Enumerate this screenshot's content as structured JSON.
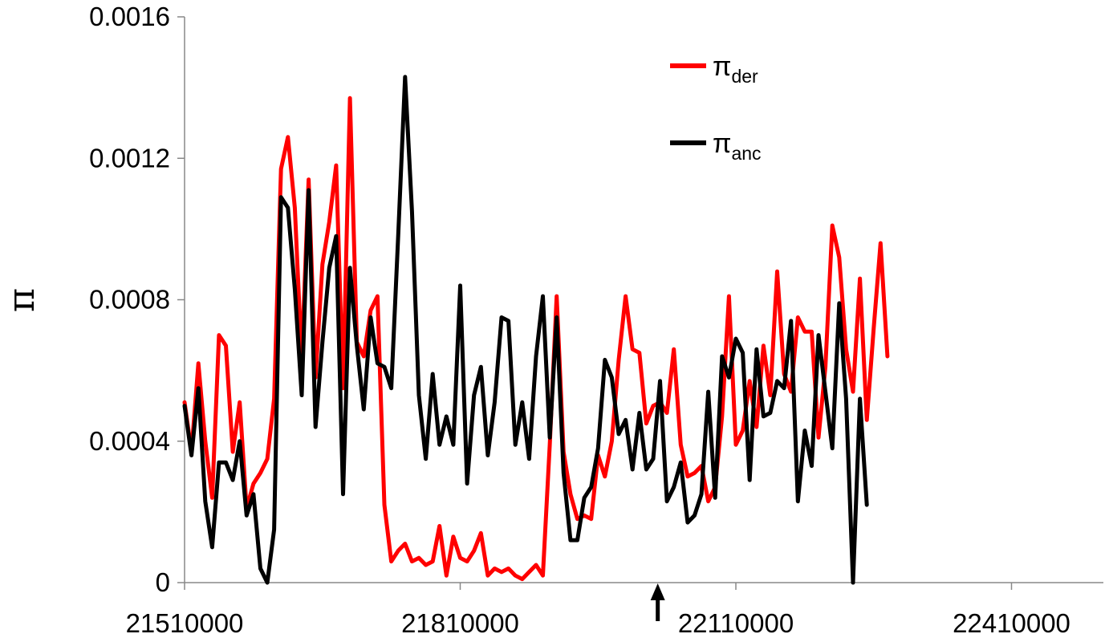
{
  "chart_data": {
    "type": "line",
    "title": "",
    "xlabel": "",
    "ylabel": "π",
    "xlim": [
      21510000,
      22510000
    ],
    "ylim": [
      0,
      0.0016
    ],
    "x_ticks": [
      21510000,
      21810000,
      22110000,
      22410000
    ],
    "x_tick_labels": [
      "21510000",
      "21810000",
      "22110000",
      "22410000"
    ],
    "y_ticks": [
      0,
      0.0004,
      0.0008,
      0.0012,
      0.0016
    ],
    "y_tick_labels": [
      "0",
      "0.0004",
      "0.0008",
      "0.0012",
      "0.0016"
    ],
    "grid": false,
    "legend_position": "top-right",
    "x_start": 21510000,
    "x_step": 7500,
    "annotation": {
      "type": "arrow",
      "x": 22025000
    },
    "series": [
      {
        "name": "π_der",
        "label_main": "π",
        "label_sub": "der",
        "color": "#ff0000",
        "values": [
          0.00051,
          0.00037,
          0.00062,
          0.0004,
          0.00024,
          0.0007,
          0.00067,
          0.00037,
          0.00051,
          0.00021,
          0.00028,
          0.00031,
          0.00035,
          0.00052,
          0.00117,
          0.00126,
          0.00106,
          0.00063,
          0.00114,
          0.00058,
          0.0009,
          0.00102,
          0.00118,
          0.00055,
          0.00137,
          0.00068,
          0.00064,
          0.00077,
          0.00081,
          0.00022,
          6e-05,
          9e-05,
          0.00011,
          6e-05,
          7e-05,
          5e-05,
          6e-05,
          0.00016,
          2e-05,
          0.00013,
          7e-05,
          6e-05,
          9e-05,
          0.00014,
          2e-05,
          4e-05,
          3e-05,
          4e-05,
          2e-05,
          1e-05,
          3e-05,
          5e-05,
          2e-05,
          0.00039,
          0.00081,
          0.00037,
          0.00025,
          0.00018,
          0.00019,
          0.00018,
          0.00036,
          0.0003,
          0.0004,
          0.00063,
          0.00081,
          0.00066,
          0.00065,
          0.00045,
          0.0005,
          0.00051,
          0.00048,
          0.00066,
          0.00039,
          0.0003,
          0.00031,
          0.00033,
          0.00023,
          0.00027,
          0.00047,
          0.00081,
          0.00039,
          0.00043,
          0.00057,
          0.00044,
          0.00067,
          0.00053,
          0.00088,
          0.00059,
          0.00054,
          0.00075,
          0.00071,
          0.00071,
          0.00041,
          0.00061,
          0.00101,
          0.00092,
          0.00066,
          0.00054,
          0.00086,
          0.00046,
          0.00072,
          0.00096,
          0.00064
        ]
      },
      {
        "name": "π_anc",
        "label_main": "π",
        "label_sub": "anc",
        "color": "#000000",
        "values": [
          0.0005,
          0.00036,
          0.00055,
          0.00023,
          0.0001,
          0.00034,
          0.00034,
          0.00029,
          0.0004,
          0.00019,
          0.00025,
          4e-05,
          0.0,
          0.00015,
          0.00109,
          0.00106,
          0.00083,
          0.00053,
          0.00111,
          0.00044,
          0.00068,
          0.00089,
          0.00098,
          0.00025,
          0.00089,
          0.00067,
          0.00049,
          0.00075,
          0.00062,
          0.00061,
          0.00055,
          0.00098,
          0.00143,
          0.00105,
          0.00053,
          0.00035,
          0.00059,
          0.00039,
          0.00047,
          0.00039,
          0.00084,
          0.00028,
          0.00053,
          0.00061,
          0.00036,
          0.00051,
          0.00075,
          0.00074,
          0.00039,
          0.00051,
          0.00035,
          0.00064,
          0.00081,
          0.00041,
          0.00075,
          0.00031,
          0.00012,
          0.00012,
          0.00024,
          0.00027,
          0.00038,
          0.00063,
          0.00058,
          0.00042,
          0.00046,
          0.00032,
          0.00048,
          0.00032,
          0.00035,
          0.00057,
          0.00023,
          0.00027,
          0.00034,
          0.00017,
          0.00019,
          0.00025,
          0.00054,
          0.00024,
          0.00064,
          0.00058,
          0.00069,
          0.00065,
          0.00029,
          0.00066,
          0.00047,
          0.00048,
          0.00057,
          0.00055,
          0.00074,
          0.00023,
          0.00043,
          0.00033,
          0.0007,
          0.00054,
          0.00038,
          0.00079,
          0.00052,
          0.0,
          0.00052,
          0.00022
        ]
      }
    ]
  }
}
